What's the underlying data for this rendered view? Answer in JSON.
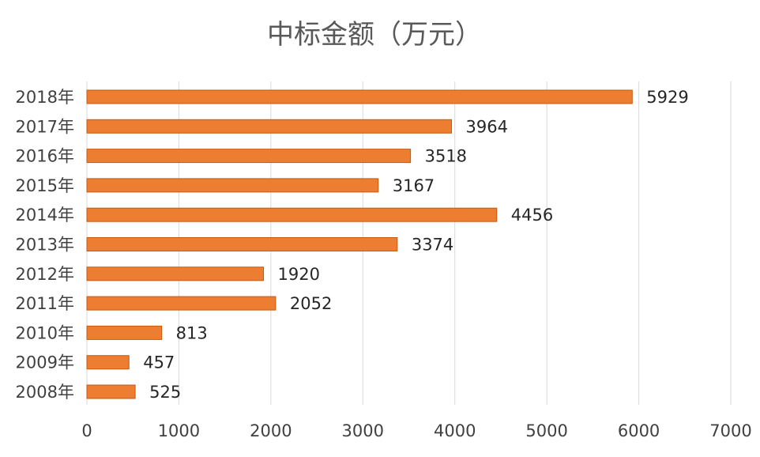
{
  "chart_data": {
    "type": "bar",
    "orientation": "horizontal",
    "title": "中标金额（万元）",
    "xlabel": "",
    "ylabel": "",
    "categories": [
      "2018年",
      "2017年",
      "2016年",
      "2015年",
      "2014年",
      "2013年",
      "2012年",
      "2011年",
      "2010年",
      "2009年",
      "2008年"
    ],
    "values": [
      5929,
      3964,
      3518,
      3167,
      4456,
      3374,
      1920,
      2052,
      813,
      457,
      525
    ],
    "xlim": [
      0,
      7000
    ],
    "xticks": [
      0,
      1000,
      2000,
      3000,
      4000,
      5000,
      6000,
      7000
    ],
    "grid": true,
    "legend": "none",
    "data_labels": true,
    "bar_color": "#ed7d31"
  }
}
